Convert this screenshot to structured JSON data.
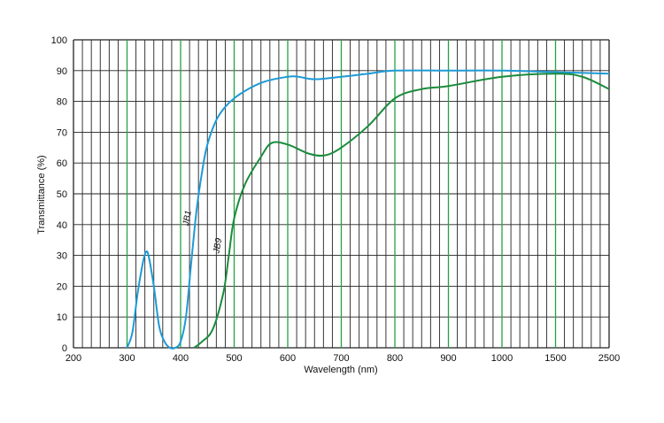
{
  "chart_data": {
    "type": "line",
    "title": "",
    "xlabel": "Wavelength (nm)",
    "ylabel": "Transmittance (%)",
    "x_ticks": [
      "200",
      "300",
      "400",
      "500",
      "600",
      "700",
      "800",
      "900",
      "1000",
      "1500",
      "2500"
    ],
    "y_ticks": [
      "100",
      "90",
      "80",
      "70",
      "60",
      "50",
      "40",
      "30",
      "20",
      "10",
      "0"
    ],
    "ylim": [
      0,
      100
    ],
    "x_scale": "nonlinear (200-1000 nm equal steps of 100 nm, then 1500 and 2500 nm)",
    "grid": true,
    "colors": {
      "JB1": "#1e9ad6",
      "JB9": "#1a8c3c",
      "grid": "#222222",
      "grid_accent": "#25a244"
    },
    "series": [
      {
        "name": "JB1",
        "points": [
          [
            300,
            0
          ],
          [
            310,
            5
          ],
          [
            320,
            18
          ],
          [
            330,
            28
          ],
          [
            335,
            31
          ],
          [
            340,
            30
          ],
          [
            350,
            20
          ],
          [
            360,
            7
          ],
          [
            370,
            2
          ],
          [
            380,
            0
          ],
          [
            390,
            0
          ],
          [
            400,
            2
          ],
          [
            410,
            10
          ],
          [
            420,
            28
          ],
          [
            430,
            45
          ],
          [
            440,
            57
          ],
          [
            450,
            66
          ],
          [
            470,
            75
          ],
          [
            500,
            81
          ],
          [
            550,
            86
          ],
          [
            600,
            88
          ],
          [
            620,
            88
          ],
          [
            650,
            87.2
          ],
          [
            700,
            88
          ],
          [
            750,
            89
          ],
          [
            800,
            90
          ],
          [
            900,
            90
          ],
          [
            1000,
            90
          ],
          [
            1500,
            89.5
          ],
          [
            2500,
            89
          ]
        ]
      },
      {
        "name": "JB9",
        "points": [
          [
            425,
            0
          ],
          [
            440,
            2
          ],
          [
            460,
            6
          ],
          [
            480,
            18
          ],
          [
            490,
            30
          ],
          [
            500,
            42
          ],
          [
            520,
            53
          ],
          [
            550,
            62
          ],
          [
            570,
            66.5
          ],
          [
            600,
            66
          ],
          [
            640,
            63
          ],
          [
            670,
            62.5
          ],
          [
            700,
            65
          ],
          [
            750,
            72
          ],
          [
            800,
            81
          ],
          [
            850,
            84
          ],
          [
            900,
            85
          ],
          [
            1000,
            88
          ],
          [
            1500,
            89
          ],
          [
            2000,
            88
          ],
          [
            2500,
            84
          ]
        ]
      }
    ]
  }
}
